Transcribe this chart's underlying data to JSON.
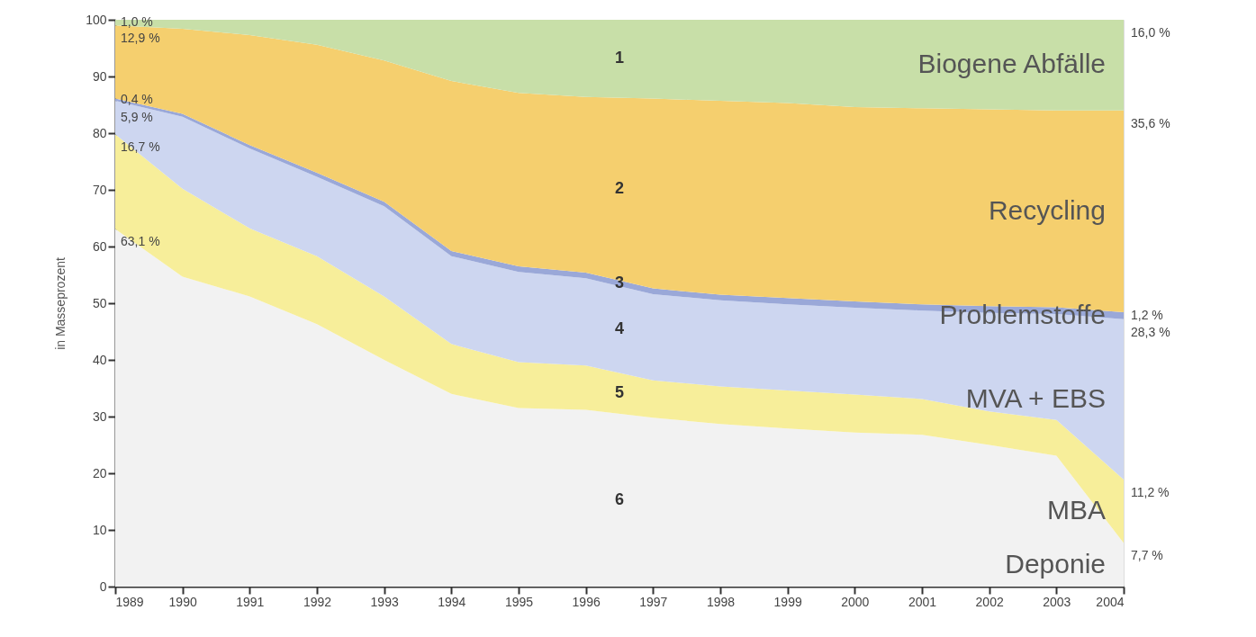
{
  "chart_data": {
    "type": "area",
    "stacked": true,
    "ylabel": "in Masseprozent",
    "x": [
      1989,
      1990,
      1991,
      1992,
      1993,
      1994,
      1995,
      1996,
      1997,
      1998,
      1999,
      2000,
      2001,
      2002,
      2003,
      2004
    ],
    "xlim": [
      1989,
      2004
    ],
    "xticks": [
      1989,
      1990,
      1991,
      1992,
      1993,
      1994,
      1995,
      1996,
      1997,
      1998,
      1999,
      2000,
      2001,
      2002,
      2003,
      2004
    ],
    "ylim": [
      0,
      100
    ],
    "yticks": [
      0,
      10,
      20,
      30,
      40,
      50,
      60,
      70,
      80,
      90,
      100
    ],
    "grid": false,
    "series": [
      {
        "name": "Deponie",
        "color": "#f2f2f2",
        "values": [
          63.1,
          54.7,
          51.2,
          46.3,
          40.0,
          34.0,
          31.5,
          31.2,
          29.8,
          28.7,
          27.9,
          27.2,
          26.8,
          25.0,
          23.1,
          7.7
        ],
        "value_labels": [
          "63,1 %",
          null,
          null,
          null,
          null,
          null,
          null,
          null,
          null,
          null,
          null,
          null,
          null,
          null,
          null,
          "7,7 %"
        ]
      },
      {
        "name": "MBA",
        "color": "#f7ee9a",
        "values": [
          16.7,
          15.5,
          12.0,
          12.0,
          11.2,
          8.8,
          8.1,
          7.8,
          6.6,
          6.6,
          6.7,
          6.7,
          6.3,
          5.9,
          6.3,
          11.2
        ],
        "value_labels": [
          "16,7 %",
          null,
          null,
          null,
          null,
          null,
          null,
          null,
          null,
          null,
          null,
          null,
          null,
          null,
          null,
          "11,2 %"
        ]
      },
      {
        "name": "MVA + EBS",
        "color": "#cdd6f0",
        "values": [
          5.9,
          12.7,
          14.1,
          14.0,
          15.9,
          15.5,
          15.9,
          15.4,
          15.2,
          15.2,
          15.2,
          15.3,
          15.6,
          17.4,
          18.7,
          28.3
        ],
        "value_labels": [
          "5,9 %",
          null,
          null,
          null,
          null,
          null,
          null,
          null,
          null,
          null,
          null,
          null,
          null,
          null,
          null,
          "28,3 %"
        ]
      },
      {
        "name": "Problemstoffe",
        "color": "#9aa8d8",
        "values": [
          0.4,
          0.5,
          0.6,
          0.7,
          0.8,
          0.9,
          1.0,
          1.0,
          1.0,
          1.0,
          1.1,
          1.1,
          1.1,
          1.2,
          1.2,
          1.2
        ],
        "value_labels": [
          "0,4 %",
          null,
          null,
          null,
          null,
          null,
          null,
          null,
          null,
          null,
          null,
          null,
          null,
          null,
          null,
          "1,2 %"
        ]
      },
      {
        "name": "Recycling",
        "color": "#f5cf6e",
        "values": [
          12.9,
          15.0,
          19.4,
          22.6,
          24.9,
          30.0,
          30.6,
          31.0,
          33.5,
          34.2,
          34.4,
          34.3,
          34.6,
          34.7,
          34.7,
          35.6
        ],
        "value_labels": [
          "12,9 %",
          null,
          null,
          null,
          null,
          null,
          null,
          null,
          null,
          null,
          null,
          null,
          null,
          null,
          null,
          "35,6 %"
        ]
      },
      {
        "name": "Biogene Abfälle",
        "color": "#c8dfa8",
        "values": [
          1.0,
          1.6,
          2.7,
          4.4,
          7.2,
          10.8,
          12.9,
          13.6,
          13.9,
          14.3,
          14.7,
          15.4,
          15.6,
          15.8,
          16.0,
          16.0
        ],
        "value_labels": [
          "1,0 %",
          null,
          null,
          null,
          null,
          null,
          null,
          null,
          null,
          null,
          null,
          null,
          null,
          null,
          null,
          "16,0 %"
        ]
      }
    ],
    "annotations": [
      "1",
      "2",
      "3",
      "4",
      "5",
      "6"
    ]
  }
}
